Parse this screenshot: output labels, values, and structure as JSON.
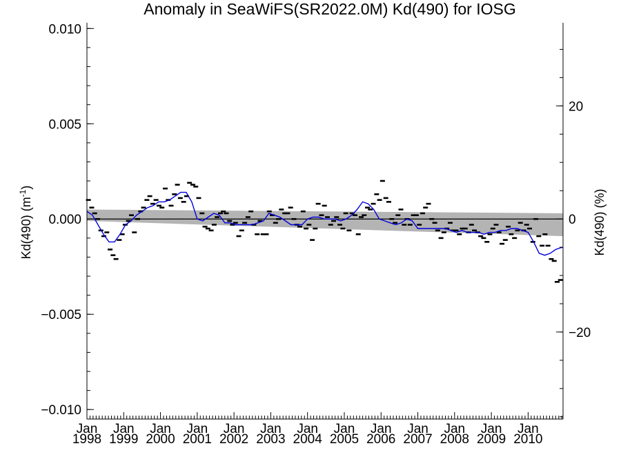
{
  "chart_data": {
    "type": "scatter",
    "title": "Anomaly in SeaWiFS(SR2022.0M) Kd(490) for IOSG",
    "ylabel_left": "Kd(490) (m",
    "ylabel_left_sup": "-1",
    "ylabel_left_close": ")",
    "ylabel_right": "Kd(490) (%)",
    "xlim": [
      1998.0,
      2010.95
    ],
    "ylim": [
      -0.0105,
      0.0103
    ],
    "ylim_right": [
      -35.4,
      34.7
    ],
    "x_ticks": [
      {
        "x": 1998,
        "label_month": "Jan",
        "label_year": "1998"
      },
      {
        "x": 1999,
        "label_month": "Jan",
        "label_year": "1999"
      },
      {
        "x": 2000,
        "label_month": "Jan",
        "label_year": "2000"
      },
      {
        "x": 2001,
        "label_month": "Jan",
        "label_year": "2001"
      },
      {
        "x": 2002,
        "label_month": "Jan",
        "label_year": "2002"
      },
      {
        "x": 2003,
        "label_month": "Jan",
        "label_year": "2003"
      },
      {
        "x": 2004,
        "label_month": "Jan",
        "label_year": "2004"
      },
      {
        "x": 2005,
        "label_month": "Jan",
        "label_year": "2005"
      },
      {
        "x": 2006,
        "label_month": "Jan",
        "label_year": "2006"
      },
      {
        "x": 2007,
        "label_month": "Jan",
        "label_year": "2007"
      },
      {
        "x": 2008,
        "label_month": "Jan",
        "label_year": "2008"
      },
      {
        "x": 2009,
        "label_month": "Jan",
        "label_year": "2009"
      },
      {
        "x": 2010,
        "label_month": "Jan",
        "label_year": "2010"
      }
    ],
    "y_ticks_left": [
      {
        "value": 0.01,
        "label": "0.010"
      },
      {
        "value": 0.005,
        "label": "0.005"
      },
      {
        "value": 0.0,
        "label": "0.000"
      },
      {
        "value": -0.005,
        "label": "−0.005"
      },
      {
        "value": -0.01,
        "label": "−0.010"
      }
    ],
    "y_ticks_right": [
      {
        "value": 20,
        "label": "20"
      },
      {
        "value": 0,
        "label": "0"
      },
      {
        "value": -20,
        "label": "−20"
      }
    ],
    "zero_line": 0.0,
    "trend_band": {
      "x": [
        1998.0,
        2010.95
      ],
      "upper": [
        0.0005,
        0.0003
      ],
      "lower": [
        -0.0001,
        -0.0009
      ]
    },
    "series": [
      {
        "kind": "monthly_anomaly",
        "marker": "dash",
        "color": "#000000",
        "x": [
          1998.04,
          1998.13,
          1998.21,
          1998.29,
          1998.38,
          1998.46,
          1998.54,
          1998.63,
          1998.71,
          1998.79,
          1998.88,
          1998.96,
          1999.04,
          1999.13,
          1999.21,
          1999.29,
          1999.38,
          1999.46,
          1999.54,
          1999.63,
          1999.71,
          1999.79,
          1999.88,
          1999.96,
          2000.04,
          2000.13,
          2000.21,
          2000.29,
          2000.38,
          2000.46,
          2000.54,
          2000.63,
          2000.71,
          2000.79,
          2000.88,
          2000.96,
          2001.04,
          2001.13,
          2001.21,
          2001.29,
          2001.38,
          2001.46,
          2001.54,
          2001.63,
          2001.71,
          2001.79,
          2001.88,
          2001.96,
          2002.04,
          2002.13,
          2002.21,
          2002.29,
          2002.38,
          2002.46,
          2002.54,
          2002.63,
          2002.71,
          2002.79,
          2002.88,
          2002.96,
          2003.04,
          2003.13,
          2003.21,
          2003.29,
          2003.38,
          2003.46,
          2003.54,
          2003.63,
          2003.71,
          2003.79,
          2003.88,
          2003.96,
          2004.04,
          2004.13,
          2004.21,
          2004.29,
          2004.38,
          2004.46,
          2004.54,
          2004.63,
          2004.71,
          2004.79,
          2004.88,
          2004.96,
          2005.04,
          2005.13,
          2005.21,
          2005.29,
          2005.38,
          2005.46,
          2005.54,
          2005.63,
          2005.71,
          2005.79,
          2005.88,
          2005.96,
          2006.04,
          2006.13,
          2006.21,
          2006.29,
          2006.38,
          2006.46,
          2006.54,
          2006.63,
          2006.71,
          2006.79,
          2006.88,
          2006.96,
          2007.04,
          2007.13,
          2007.21,
          2007.29,
          2007.38,
          2007.46,
          2007.54,
          2007.63,
          2007.71,
          2007.79,
          2007.88,
          2007.96,
          2008.04,
          2008.13,
          2008.21,
          2008.29,
          2008.38,
          2008.46,
          2008.54,
          2008.63,
          2008.71,
          2008.79,
          2008.88,
          2008.96,
          2009.04,
          2009.13,
          2009.21,
          2009.29,
          2009.38,
          2009.46,
          2009.54,
          2009.63,
          2009.71,
          2009.79,
          2009.88,
          2009.96,
          2010.04,
          2010.13,
          2010.21,
          2010.29,
          2010.38,
          2010.46,
          2010.54,
          2010.63,
          2010.71,
          2010.79,
          2010.88
        ],
        "y": [
          0.001,
          0.0006,
          0.0003,
          0.0,
          -0.0006,
          -0.0009,
          -0.0007,
          -0.0016,
          -0.0019,
          -0.0021,
          -0.0011,
          -0.0008,
          -0.0003,
          -0.0001,
          0.0002,
          -0.0007,
          0.0,
          0.0004,
          0.0006,
          0.001,
          0.0012,
          0.0008,
          0.001,
          0.0007,
          0.0006,
          0.0016,
          0.001,
          0.0007,
          0.0013,
          0.0018,
          0.0011,
          0.0009,
          0.0012,
          0.0019,
          0.0018,
          0.0017,
          0.0011,
          0.0003,
          -0.0004,
          -0.0005,
          -0.0006,
          -0.0003,
          0.0001,
          0.0003,
          0.0004,
          0.0003,
          -0.0001,
          -0.0003,
          -0.0002,
          -0.0009,
          -0.0006,
          -0.0002,
          0.0001,
          0.0004,
          -0.0003,
          -0.0008,
          -0.0001,
          -0.0008,
          -0.0008,
          0.0004,
          0.0002,
          -0.0002,
          0.0,
          0.0005,
          0.0003,
          0.0003,
          0.0006,
          0.0,
          -0.0003,
          -0.0004,
          0.0004,
          -0.0005,
          -0.0003,
          -0.0011,
          -0.0005,
          0.0008,
          0.0002,
          0.0007,
          0.0001,
          -0.0003,
          -0.0001,
          0.0001,
          -0.0003,
          -0.0005,
          0.0003,
          -0.0006,
          0.0003,
          0.0002,
          -0.0008,
          0.0001,
          0.0002,
          0.0006,
          0.0005,
          0.0008,
          0.0013,
          0.001,
          0.002,
          0.0011,
          0.0009,
          0.0,
          -0.0002,
          0.0002,
          0.0005,
          -0.0003,
          0.0,
          -0.0003,
          0.0002,
          0.0002,
          -0.0003,
          0.0003,
          0.0006,
          0.0008,
          0.0,
          -0.0002,
          -0.0006,
          -0.001,
          -0.0007,
          -0.0005,
          -0.0002,
          -0.0006,
          -0.0006,
          -0.0008,
          -0.0005,
          -0.0005,
          -0.0007,
          -0.0003,
          -0.0006,
          -0.0007,
          -0.0009,
          -0.001,
          -0.0012,
          -0.0008,
          -0.0005,
          -0.0003,
          -0.0007,
          -0.0013,
          -0.0011,
          -0.0004,
          -0.0008,
          -0.001,
          -0.0006,
          -0.0002,
          -0.0006,
          -0.0003,
          -0.0005,
          -0.0012,
          0.0,
          -0.0009,
          -0.0014,
          -0.0008,
          -0.0014,
          -0.0021,
          -0.0022,
          -0.0033,
          -0.0032
        ]
      },
      {
        "kind": "smoothed",
        "color": "#0000dd",
        "x": [
          1998.0,
          1998.15,
          1998.3,
          1998.45,
          1998.6,
          1998.75,
          1998.9,
          1999.05,
          1999.2,
          1999.35,
          1999.5,
          1999.65,
          1999.8,
          1999.95,
          2000.1,
          2000.25,
          2000.4,
          2000.55,
          2000.7,
          2000.85,
          2001.0,
          2001.15,
          2001.3,
          2001.45,
          2001.6,
          2001.75,
          2001.9,
          2002.05,
          2002.2,
          2002.35,
          2002.5,
          2002.65,
          2002.8,
          2002.95,
          2003.1,
          2003.25,
          2003.4,
          2003.55,
          2003.7,
          2003.85,
          2004.0,
          2004.15,
          2004.3,
          2004.45,
          2004.6,
          2004.75,
          2004.9,
          2005.05,
          2005.2,
          2005.35,
          2005.5,
          2005.65,
          2005.8,
          2005.95,
          2006.1,
          2006.25,
          2006.4,
          2006.55,
          2006.7,
          2006.85,
          2007.0,
          2007.15,
          2007.3,
          2007.45,
          2007.6,
          2007.75,
          2007.9,
          2008.05,
          2008.2,
          2008.35,
          2008.5,
          2008.65,
          2008.8,
          2008.95,
          2009.1,
          2009.25,
          2009.4,
          2009.55,
          2009.7,
          2009.85,
          2010.0,
          2010.15,
          2010.3,
          2010.45,
          2010.6,
          2010.75,
          2010.9,
          2010.95
        ],
        "y": [
          0.0004,
          0.0002,
          -0.0003,
          -0.0008,
          -0.0012,
          -0.0012,
          -0.0008,
          -0.0003,
          -0.0001,
          0.0002,
          0.0004,
          0.0006,
          0.0007,
          0.0009,
          0.0009,
          0.001,
          0.0012,
          0.0014,
          0.0014,
          0.0009,
          0.0,
          -0.0001,
          0.0001,
          0.0003,
          0.0002,
          -0.0002,
          -0.0002,
          -0.0003,
          -0.0003,
          -0.0003,
          -0.0003,
          -0.0002,
          -0.0001,
          0.0003,
          0.0002,
          0.0001,
          -0.0001,
          -0.0003,
          -0.0003,
          -0.0003,
          0.0,
          0.0001,
          0.0001,
          0.0,
          0.0,
          0.0,
          -0.0001,
          0.0,
          0.0002,
          0.0005,
          0.0009,
          0.0008,
          0.0005,
          0.0,
          -0.0001,
          -0.0002,
          -0.0003,
          -0.0002,
          0.0,
          -0.0001,
          -0.0005,
          -0.0005,
          -0.0005,
          -0.0005,
          -0.0005,
          -0.0005,
          -0.0006,
          -0.0007,
          -0.0006,
          -0.0007,
          -0.0007,
          -0.0007,
          -0.0008,
          -0.0007,
          -0.0007,
          -0.0006,
          -0.0006,
          -0.0005,
          -0.0005,
          -0.0006,
          -0.0007,
          -0.0012,
          -0.0018,
          -0.0019,
          -0.0018,
          -0.0016,
          -0.0015,
          -0.0015
        ]
      }
    ]
  }
}
